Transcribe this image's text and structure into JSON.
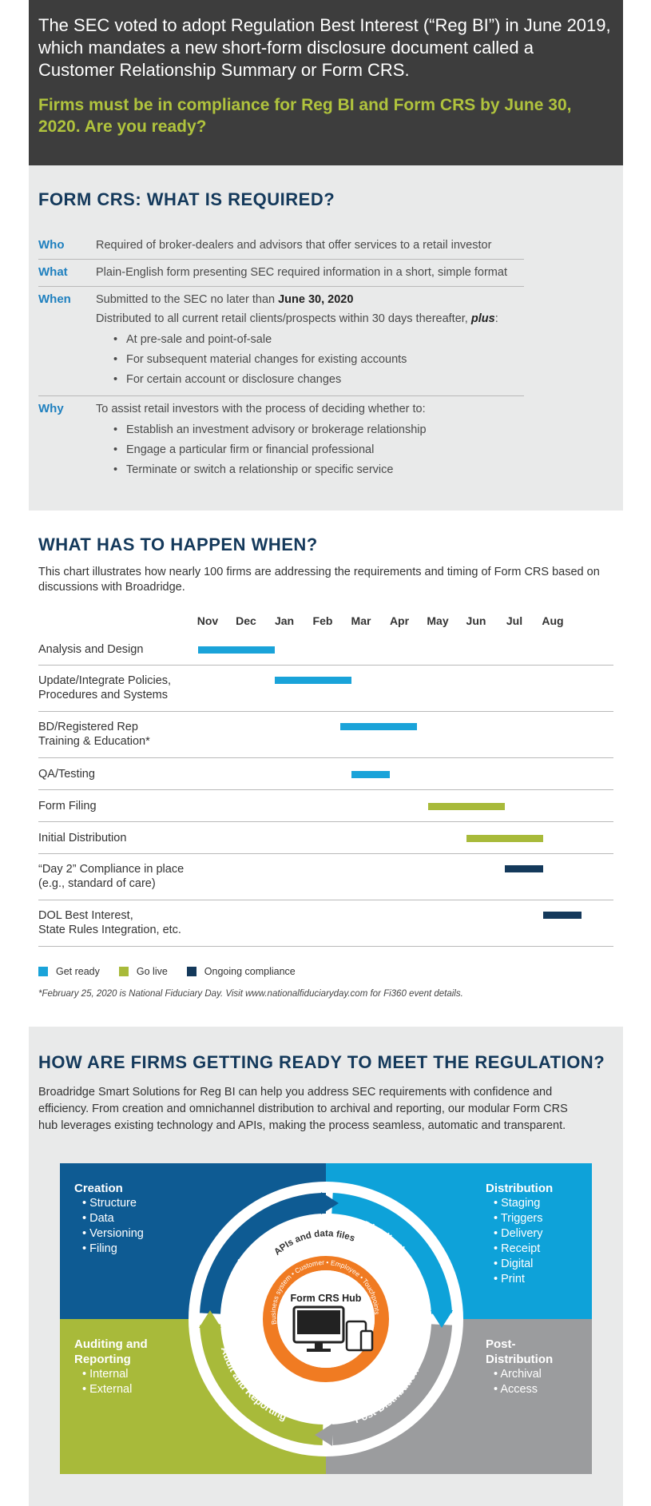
{
  "hero": {
    "intro": "The SEC voted to adopt Regulation Best Interest (“Reg BI”) in June 2019, which mandates a new short-form disclosure document called a Customer Relationship Summary or Form CRS.",
    "cta": "Firms must be in compliance for Reg BI and Form CRS by June 30, 2020.  Are you ready?"
  },
  "requirements": {
    "title": "FORM CRS: WHAT IS REQUIRED?",
    "rows": [
      {
        "key": "Who",
        "text": "Required of broker-dealers and advisors that offer services to a retail investor"
      },
      {
        "key": "What",
        "text": "Plain-English form presenting SEC required information in a short, simple format"
      },
      {
        "key": "When",
        "text_pre": "Submitted to the SEC no later than ",
        "date": "June 30, 2020",
        "text2_pre": "Distributed to all current retail clients/prospects within 30 days thereafter, ",
        "plus": "plus",
        "text2_post": ":",
        "bullets": [
          "At pre-sale and point-of-sale",
          "For subsequent material changes for existing accounts",
          "For certain account or disclosure changes"
        ]
      },
      {
        "key": "Why",
        "text": "To assist retail investors with the process of deciding whether to:",
        "bullets": [
          "Establish an investment advisory or brokerage relationship",
          "Engage a particular firm or financial professional",
          "Terminate or switch a relationship or specific service"
        ]
      }
    ]
  },
  "timeline": {
    "title": "WHAT HAS TO HAPPEN WHEN?",
    "description": "This chart illustrates how nearly 100 firms are addressing the requirements and timing of Form CRS based on discussions with Broadridge.",
    "months": [
      "Nov",
      "Dec",
      "Jan",
      "Feb",
      "Mar",
      "Apr",
      "May",
      "Jun",
      "Jul",
      "Aug"
    ],
    "tasks": [
      {
        "label_lines": [
          "Analysis and Design"
        ],
        "start": 0,
        "end": 2,
        "phase": "get_ready"
      },
      {
        "label_lines": [
          "Update/Integrate Policies,",
          "Procedures and Systems"
        ],
        "start": 2,
        "end": 4,
        "phase": "get_ready"
      },
      {
        "label_lines": [
          "BD/Registered Rep",
          "Training & Education*"
        ],
        "start": 3.7,
        "end": 5.7,
        "phase": "get_ready"
      },
      {
        "label_lines": [
          "QA/Testing"
        ],
        "start": 4,
        "end": 5,
        "phase": "get_ready"
      },
      {
        "label_lines": [
          "Form Filing"
        ],
        "start": 6,
        "end": 8,
        "phase": "go_live"
      },
      {
        "label_lines": [
          "Initial Distribution"
        ],
        "start": 7,
        "end": 9,
        "phase": "go_live"
      },
      {
        "label_lines": [
          "“Day 2” Compliance in place",
          "(e.g., standard of care)"
        ],
        "start": 8,
        "end": 9,
        "phase": "ongoing"
      },
      {
        "label_lines": [
          "DOL Best Interest,",
          "State Rules Integration, etc."
        ],
        "start": 9,
        "end": 10,
        "phase": "ongoing"
      }
    ],
    "legend": [
      {
        "key": "get_ready",
        "label": "Get ready",
        "color": "#1aa3d9"
      },
      {
        "key": "go_live",
        "label": "Go live",
        "color": "#a8ba3a"
      },
      {
        "key": "ongoing",
        "label": "Ongoing compliance",
        "color": "#14395b"
      }
    ],
    "footnote": "*February 25, 2020 is National Fiduciary Day. Visit www.nationalfiduciaryday.com for Fi360 event details."
  },
  "ready": {
    "title": "HOW ARE FIRMS GETTING READY TO MEET THE REGULATION?",
    "description": "Broadridge Smart Solutions for Reg BI can help you address SEC requirements with confidence and efficiency. From creation and omnichannel distribution to archival and reporting, our modular Form CRS hub leverages existing technology and APIs, making the process seamless, automatic and transparent."
  },
  "diagram": {
    "creation": {
      "title": "Creation",
      "items": [
        "Structure",
        "Data",
        "Versioning",
        "Filing"
      ],
      "color": "#0e5b93"
    },
    "distribution": {
      "title": "Distribution",
      "items": [
        "Staging",
        "Triggers",
        "Delivery",
        "Receipt",
        "Digital",
        "Print"
      ],
      "color": "#0ea2d9"
    },
    "auditing": {
      "title_lines": [
        "Auditing and",
        "Reporting"
      ],
      "items": [
        "Internal",
        "External"
      ],
      "color": "#a8ba3a"
    },
    "post_distribution": {
      "title": "Post-Distribution",
      "items": [
        "Archival",
        "Access"
      ],
      "color": "#9b9c9e"
    },
    "ring_labels": {
      "creation": "Creation",
      "distribution": "Distribution",
      "audit": "Audit and Reporting",
      "post": "Post-Distribution"
    },
    "apis_label": "APIs and data files",
    "inner_ring": "Business system • Customer • Employee • Touchpoints",
    "hub_title": "Form CRS Hub",
    "hub_color": "#f07b22"
  }
}
